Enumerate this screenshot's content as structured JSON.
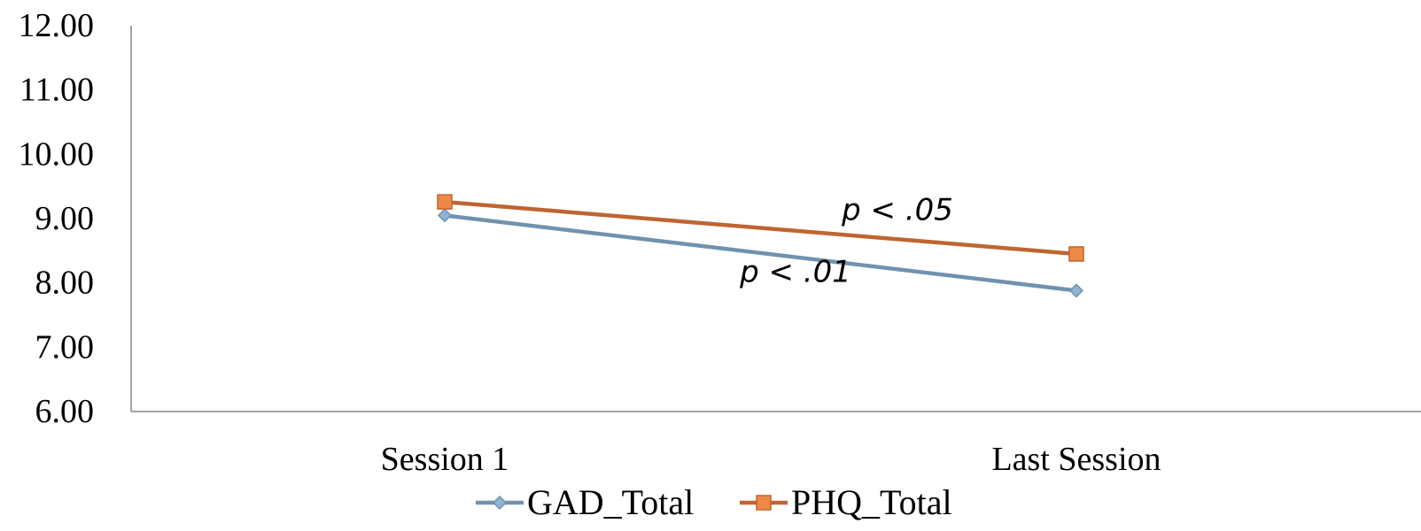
{
  "chart_data": {
    "type": "line",
    "categories": [
      "Session 1",
      "Last Session"
    ],
    "series": [
      {
        "name": "GAD_Total",
        "values": [
          9.05,
          7.88
        ],
        "color": "#7092ae",
        "marker": "diamond",
        "marker_color": "#8fb3d3"
      },
      {
        "name": "PHQ_Total",
        "values": [
          9.26,
          8.45
        ],
        "color": "#bf6530",
        "marker": "square",
        "marker_color": "#ec8a45"
      }
    ],
    "ylim": [
      6,
      12
    ],
    "yticks": [
      6,
      7,
      8,
      9,
      10,
      11,
      12
    ],
    "ytick_labels": [
      "6.00",
      "7.00",
      "8.00",
      "9.00",
      "10.00",
      "11.00",
      "12.00"
    ],
    "annotations": [
      {
        "text": "p < .05",
        "series": "PHQ_Total"
      },
      {
        "text": "p < .01",
        "series": "GAD_Total"
      }
    ],
    "legend_position": "bottom",
    "grid": false
  }
}
